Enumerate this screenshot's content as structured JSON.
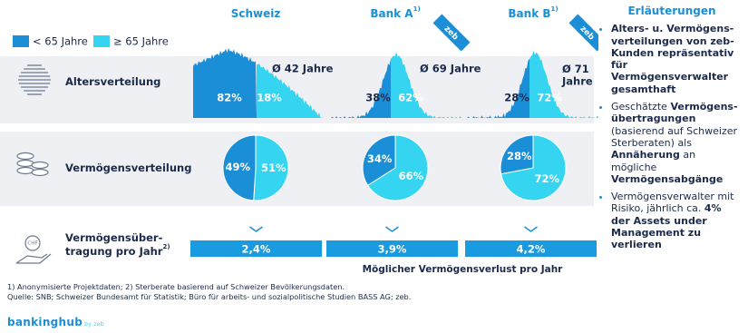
{
  "legend": [
    {
      "label": "< 65 Jahre",
      "color": "#1a8fd8"
    },
    {
      "label": "≥ 65 Jahre",
      "color": "#35d4f0"
    }
  ],
  "columns": [
    {
      "name": "Schweiz"
    },
    {
      "name": "Bank A",
      "note": "1)"
    },
    {
      "name": "Bank B",
      "note": "1)"
    }
  ],
  "badge": "zeb",
  "rows": [
    {
      "lines": [
        "Altersverteilung"
      ]
    },
    {
      "lines": [
        "Vermögensverteilung"
      ]
    },
    {
      "lines": [
        "Vermögensüber-",
        "tragung pro Jahr"
      ],
      "note": "2)"
    }
  ],
  "age": [
    {
      "average": "Ø 42 Jahre",
      "labels": [
        "82%",
        "18%"
      ]
    },
    {
      "average": "Ø 69 Jahre",
      "labels": [
        "38%",
        "62%"
      ]
    },
    {
      "average": "Ø 71 Jahre",
      "labels": [
        "28%",
        "72%"
      ]
    }
  ],
  "chart_data": [
    {
      "type": "pie",
      "values": [
        49,
        51
      ],
      "value_labels": [
        "49%",
        "51%"
      ]
    },
    {
      "type": "pie",
      "values": [
        34,
        66
      ],
      "value_labels": [
        "34%",
        "66%"
      ]
    },
    {
      "type": "pie",
      "values": [
        28,
        72
      ],
      "value_labels": [
        "28%",
        "72%"
      ]
    }
  ],
  "transfer": {
    "labels": [
      "2,4%",
      "3,9%",
      "4,2%"
    ],
    "caption": "Möglicher Vermögensverlust pro Jahr"
  },
  "icon_text": "CHF",
  "explanations": {
    "title": "Erläuterungen",
    "items": [
      [
        {
          "text": "Alters- u. Vermögens­verteilungen von zeb-Kunden repräsentativ für Vermögensverwalter gesamthaft",
          "bold": true
        }
      ],
      [
        {
          "text": "Geschätzte ",
          "bold": false
        },
        {
          "text": "Vermögens­übertragungen",
          "bold": true
        },
        {
          "text": " (basierend auf Schweizer Sterberaten) als ",
          "bold": false
        },
        {
          "text": "Annäherung",
          "bold": true
        },
        {
          "text": " an mögliche ",
          "bold": false
        },
        {
          "text": "Vermögensabgänge",
          "bold": true
        }
      ],
      [
        {
          "text": "Vermögensverwalter mit Risiko, jährlich ca. ",
          "bold": false
        },
        {
          "text": "4% der Assets under Management zu verlieren",
          "bold": true
        }
      ]
    ]
  },
  "footnotes": [
    "1) Anonymisierte Projektdaten; 2) Sterberate basierend auf Schweizer Bevölkerungsdaten.",
    "Quelle: SNB; Schweizer Bundesamt für Statistik; Büro für arbeits- und sozialpolitische Studien BASS AG; zeb."
  ],
  "brand": {
    "name": "bankinghub",
    "sub": "by zeb"
  }
}
